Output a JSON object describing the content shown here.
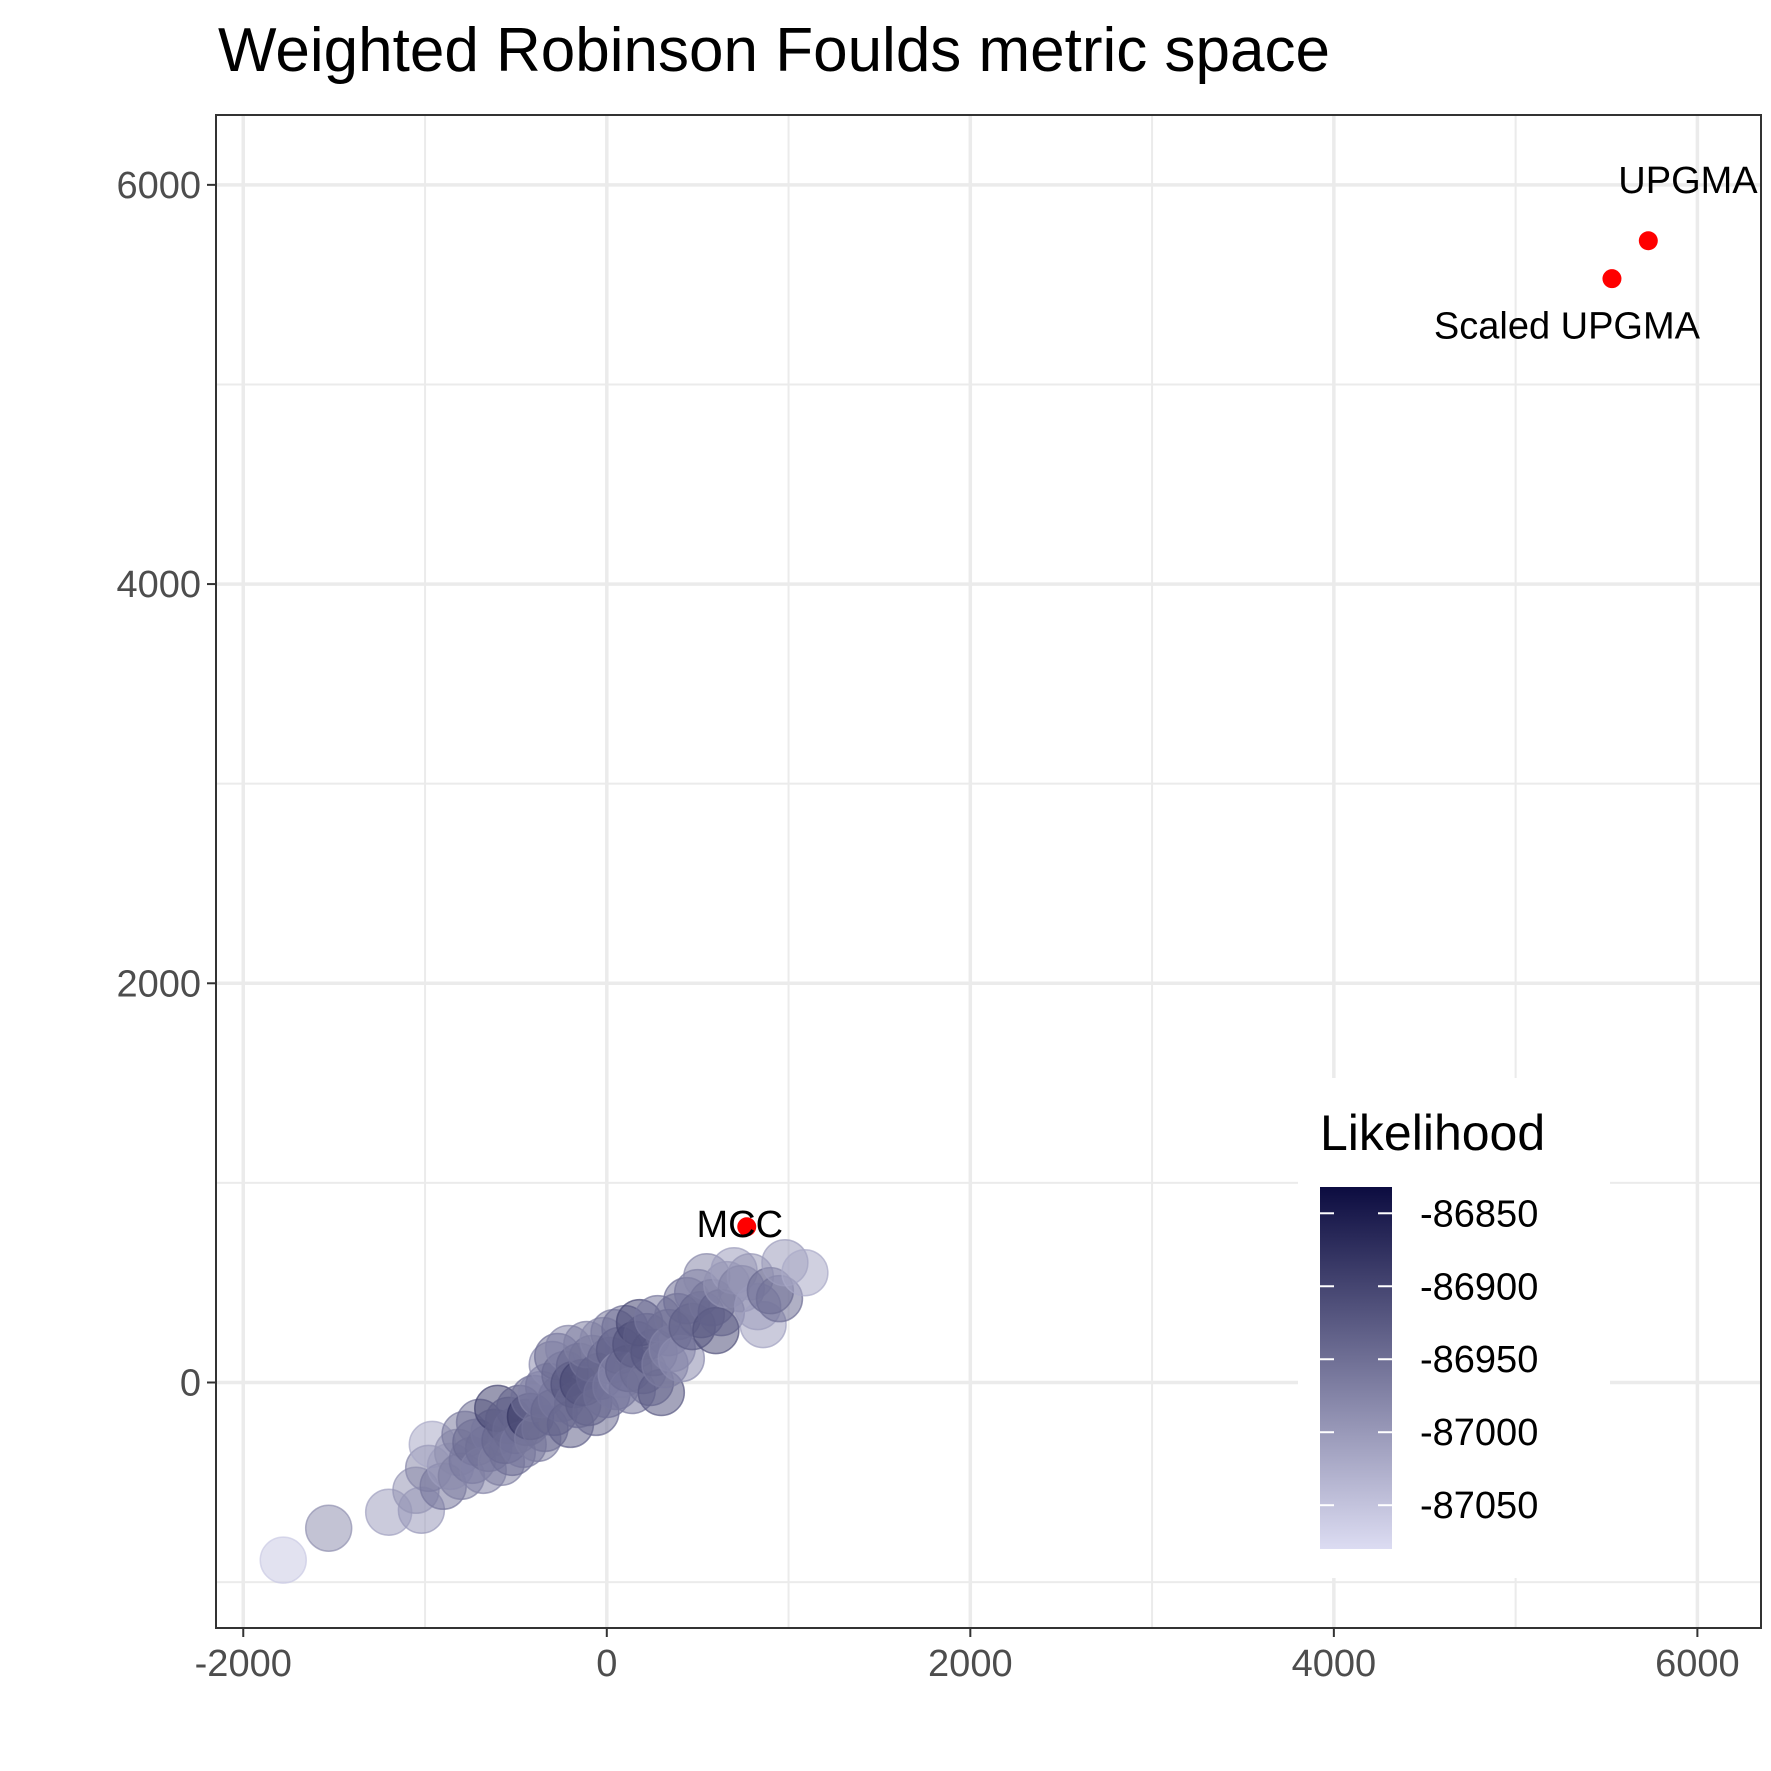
{
  "chart_data": {
    "type": "scatter",
    "title": "Weighted Robinson Foulds metric space",
    "xlabel": "",
    "ylabel": "",
    "xlim": [
      -2150,
      6350
    ],
    "ylim": [
      -1230,
      6350
    ],
    "x_ticks": [
      -2000,
      0,
      2000,
      4000,
      6000
    ],
    "y_ticks": [
      0,
      2000,
      4000,
      6000
    ],
    "x_tick_labels": [
      "-2000",
      "0",
      "2000",
      "4000",
      "6000"
    ],
    "y_tick_labels": [
      "0",
      "2000",
      "4000",
      "6000"
    ],
    "grid": true,
    "colors": {
      "low": "#dcdcf2",
      "high": "#0c0c40",
      "highlight": "#ff0000",
      "grid": "#ebebeb",
      "panel_border": "#333333"
    },
    "legend": {
      "title": "Likelihood",
      "position": "bottom-right",
      "range": [
        -87080,
        -86832
      ],
      "ticks": [
        -86850,
        -86900,
        -86950,
        -87000,
        -87050
      ],
      "tick_labels": [
        "-86850",
        "-86900",
        "-86950",
        "-87000",
        "-87050"
      ]
    },
    "highlighted_points": [
      {
        "name": "UPGMA",
        "x": 5730,
        "y": 5720
      },
      {
        "name": "Scaled UPGMA",
        "x": 5530,
        "y": 5530
      },
      {
        "name": "MCC",
        "x": 770,
        "y": 780
      }
    ],
    "points": [
      {
        "x": -1780,
        "y": -890,
        "likelihood": -87060
      },
      {
        "x": -1530,
        "y": -730,
        "likelihood": -86990
      },
      {
        "x": -1200,
        "y": -650,
        "likelihood": -87010
      },
      {
        "x": -1020,
        "y": -640,
        "likelihood": -87000
      },
      {
        "x": -1050,
        "y": -540,
        "likelihood": -86995
      },
      {
        "x": -980,
        "y": -430,
        "likelihood": -86980
      },
      {
        "x": -960,
        "y": -310,
        "likelihood": -87020
      },
      {
        "x": -900,
        "y": -520,
        "likelihood": -86960
      },
      {
        "x": -860,
        "y": -420,
        "likelihood": -87005
      },
      {
        "x": -820,
        "y": -350,
        "likelihood": -86990
      },
      {
        "x": -800,
        "y": -470,
        "likelihood": -86970
      },
      {
        "x": -780,
        "y": -260,
        "likelihood": -86965
      },
      {
        "x": -740,
        "y": -390,
        "likelihood": -86960
      },
      {
        "x": -720,
        "y": -300,
        "likelihood": -86945
      },
      {
        "x": -700,
        "y": -200,
        "likelihood": -86955
      },
      {
        "x": -680,
        "y": -440,
        "likelihood": -86975
      },
      {
        "x": -650,
        "y": -330,
        "likelihood": -86950
      },
      {
        "x": -620,
        "y": -250,
        "likelihood": -86960
      },
      {
        "x": -600,
        "y": -130,
        "likelihood": -86900
      },
      {
        "x": -580,
        "y": -400,
        "likelihood": -86970
      },
      {
        "x": -560,
        "y": -290,
        "likelihood": -86940
      },
      {
        "x": -540,
        "y": -190,
        "likelihood": -86930
      },
      {
        "x": -520,
        "y": -350,
        "likelihood": -86950
      },
      {
        "x": -500,
        "y": -240,
        "likelihood": -86945
      },
      {
        "x": -480,
        "y": -130,
        "likelihood": -86935
      },
      {
        "x": -460,
        "y": -310,
        "likelihood": -86960
      },
      {
        "x": -440,
        "y": -200,
        "likelihood": -86940
      },
      {
        "x": -420,
        "y": -170,
        "likelihood": -86880
      },
      {
        "x": -400,
        "y": -80,
        "likelihood": -86950
      },
      {
        "x": -380,
        "y": -280,
        "likelihood": -86965
      },
      {
        "x": -360,
        "y": -60,
        "likelihood": -86975
      },
      {
        "x": -340,
        "y": -230,
        "likelihood": -86955
      },
      {
        "x": -320,
        "y": -20,
        "likelihood": -86960
      },
      {
        "x": -300,
        "y": 90,
        "likelihood": -86985
      },
      {
        "x": -290,
        "y": -150,
        "likelihood": -86940
      },
      {
        "x": -270,
        "y": 130,
        "likelihood": -86950
      },
      {
        "x": -250,
        "y": -80,
        "likelihood": -86960
      },
      {
        "x": -230,
        "y": 40,
        "likelihood": -86945
      },
      {
        "x": -210,
        "y": 170,
        "likelihood": -86975
      },
      {
        "x": -200,
        "y": -210,
        "likelihood": -86935
      },
      {
        "x": -180,
        "y": -10,
        "likelihood": -86915
      },
      {
        "x": -160,
        "y": -110,
        "likelihood": -86945
      },
      {
        "x": -150,
        "y": 80,
        "likelihood": -86940
      },
      {
        "x": -130,
        "y": 0,
        "likelihood": -86900
      },
      {
        "x": -110,
        "y": 190,
        "likelihood": -86970
      },
      {
        "x": -100,
        "y": -100,
        "likelihood": -86930
      },
      {
        "x": -80,
        "y": 120,
        "likelihood": -86955
      },
      {
        "x": -60,
        "y": -150,
        "likelihood": -86945
      },
      {
        "x": -40,
        "y": 30,
        "likelihood": -86935
      },
      {
        "x": -20,
        "y": 210,
        "likelihood": -86980
      },
      {
        "x": 0,
        "y": -60,
        "likelihood": -86950
      },
      {
        "x": 20,
        "y": 110,
        "likelihood": -86940
      },
      {
        "x": 40,
        "y": 250,
        "likelihood": -86965
      },
      {
        "x": 50,
        "y": -20,
        "likelihood": -86960
      },
      {
        "x": 70,
        "y": 160,
        "likelihood": -86925
      },
      {
        "x": 80,
        "y": 40,
        "likelihood": -86985
      },
      {
        "x": 100,
        "y": 270,
        "likelihood": -86950
      },
      {
        "x": 120,
        "y": 70,
        "likelihood": -86935
      },
      {
        "x": 140,
        "y": -40,
        "likelihood": -86960
      },
      {
        "x": 160,
        "y": 190,
        "likelihood": -86915
      },
      {
        "x": 180,
        "y": 300,
        "likelihood": -86905
      },
      {
        "x": 200,
        "y": 60,
        "likelihood": -86945
      },
      {
        "x": 220,
        "y": 230,
        "likelihood": -86930
      },
      {
        "x": 240,
        "y": 0,
        "likelihood": -86955
      },
      {
        "x": 260,
        "y": 150,
        "likelihood": -86920
      },
      {
        "x": 280,
        "y": 320,
        "likelihood": -86960
      },
      {
        "x": 300,
        "y": -50,
        "likelihood": -86925
      },
      {
        "x": 320,
        "y": 90,
        "likelihood": -86965
      },
      {
        "x": 340,
        "y": 250,
        "likelihood": -86945
      },
      {
        "x": 360,
        "y": 170,
        "likelihood": -86975
      },
      {
        "x": 390,
        "y": 330,
        "likelihood": -86955
      },
      {
        "x": 410,
        "y": 120,
        "likelihood": -86985
      },
      {
        "x": 440,
        "y": 410,
        "likelihood": -86950
      },
      {
        "x": 470,
        "y": 280,
        "likelihood": -86930
      },
      {
        "x": 500,
        "y": 450,
        "likelihood": -86960
      },
      {
        "x": 520,
        "y": 340,
        "likelihood": -86940
      },
      {
        "x": 550,
        "y": 530,
        "likelihood": -86980
      },
      {
        "x": 580,
        "y": 400,
        "likelihood": -86955
      },
      {
        "x": 600,
        "y": 260,
        "likelihood": -86915
      },
      {
        "x": 630,
        "y": 350,
        "likelihood": -86935
      },
      {
        "x": 660,
        "y": 490,
        "likelihood": -86990
      },
      {
        "x": 700,
        "y": 560,
        "likelihood": -87005
      },
      {
        "x": 740,
        "y": 470,
        "likelihood": -86970
      },
      {
        "x": 790,
        "y": 530,
        "likelihood": -86995
      },
      {
        "x": 830,
        "y": 380,
        "likelihood": -87000
      },
      {
        "x": 860,
        "y": 290,
        "likelihood": -87010
      },
      {
        "x": 900,
        "y": 460,
        "likelihood": -86945
      },
      {
        "x": 950,
        "y": 420,
        "likelihood": -86950
      },
      {
        "x": 980,
        "y": 600,
        "likelihood": -87005
      },
      {
        "x": 1090,
        "y": 550,
        "likelihood": -87020
      }
    ]
  }
}
